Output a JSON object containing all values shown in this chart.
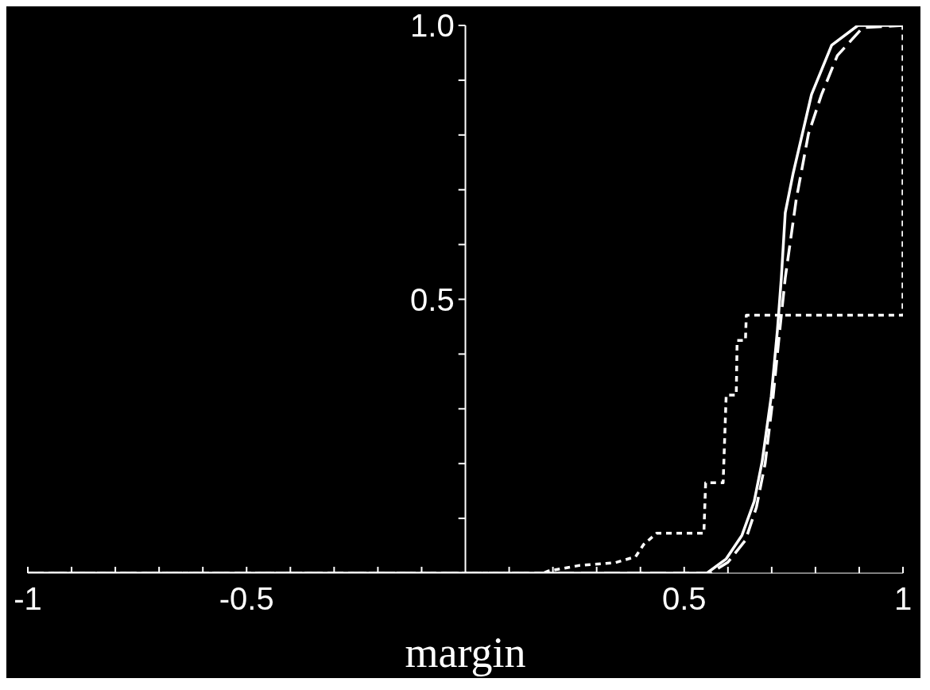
{
  "chart_data": {
    "type": "line",
    "xlabel": "margin",
    "xlim": [
      -1,
      1
    ],
    "ylim": [
      0,
      1
    ],
    "xticks": [
      {
        "value": -1,
        "label": "-1"
      },
      {
        "value": -0.9,
        "label": null
      },
      {
        "value": -0.8,
        "label": null
      },
      {
        "value": -0.7,
        "label": null
      },
      {
        "value": -0.6,
        "label": null
      },
      {
        "value": -0.5,
        "label": "-0.5"
      },
      {
        "value": -0.4,
        "label": null
      },
      {
        "value": -0.3,
        "label": null
      },
      {
        "value": -0.2,
        "label": null
      },
      {
        "value": -0.1,
        "label": null
      },
      {
        "value": 0.1,
        "label": null
      },
      {
        "value": 0.2,
        "label": null
      },
      {
        "value": 0.3,
        "label": null
      },
      {
        "value": 0.4,
        "label": null
      },
      {
        "value": 0.5,
        "label": "0.5"
      },
      {
        "value": 0.6,
        "label": null
      },
      {
        "value": 0.7,
        "label": null
      },
      {
        "value": 0.8,
        "label": null
      },
      {
        "value": 0.9,
        "label": null
      },
      {
        "value": 1,
        "label": "1"
      }
    ],
    "yticks": [
      {
        "value": 0.1,
        "label": null
      },
      {
        "value": 0.2,
        "label": null
      },
      {
        "value": 0.3,
        "label": null
      },
      {
        "value": 0.4,
        "label": null
      },
      {
        "value": 0.5,
        "label": "0.5"
      },
      {
        "value": 0.6,
        "label": null
      },
      {
        "value": 0.7,
        "label": null
      },
      {
        "value": 0.8,
        "label": null
      },
      {
        "value": 0.9,
        "label": null
      },
      {
        "value": 1,
        "label": "1.0"
      }
    ],
    "series": [
      {
        "color": "#ffffff",
        "line_style": "solid",
        "x": [
          -1,
          0.552,
          0.596,
          0.632,
          0.66,
          0.678,
          0.699,
          0.713,
          0.722,
          0.731,
          0.749,
          0.791,
          0.837,
          0.897,
          1
        ],
        "values": [
          0,
          0,
          0.026,
          0.069,
          0.131,
          0.203,
          0.323,
          0.443,
          0.539,
          0.658,
          0.73,
          0.874,
          0.964,
          1,
          1
        ]
      },
      {
        "color": "#ffffff",
        "line_style": "dashed",
        "x": [
          -1,
          0.56,
          0.6,
          0.64,
          0.665,
          0.685,
          0.703,
          0.718,
          0.731,
          0.756,
          0.784,
          0.814,
          0.85,
          0.908,
          1
        ],
        "values": [
          0,
          0,
          0.02,
          0.06,
          0.12,
          0.2,
          0.32,
          0.44,
          0.539,
          0.682,
          0.802,
          0.874,
          0.945,
          0.996,
          1
        ]
      },
      {
        "color": "#ffffff",
        "line_style": "dotted",
        "x": [
          -1,
          0.177,
          0.19,
          0.225,
          0.26,
          0.342,
          0.389,
          0.407,
          0.437,
          0.545,
          0.549,
          0.589,
          0.596,
          0.619,
          0.621,
          0.64,
          0.642,
          1,
          1
        ],
        "values": [
          0,
          0,
          0.004,
          0.009,
          0.014,
          0.019,
          0.03,
          0.052,
          0.073,
          0.073,
          0.165,
          0.165,
          0.325,
          0.325,
          0.425,
          0.425,
          0.471,
          0.471,
          1
        ]
      }
    ]
  }
}
